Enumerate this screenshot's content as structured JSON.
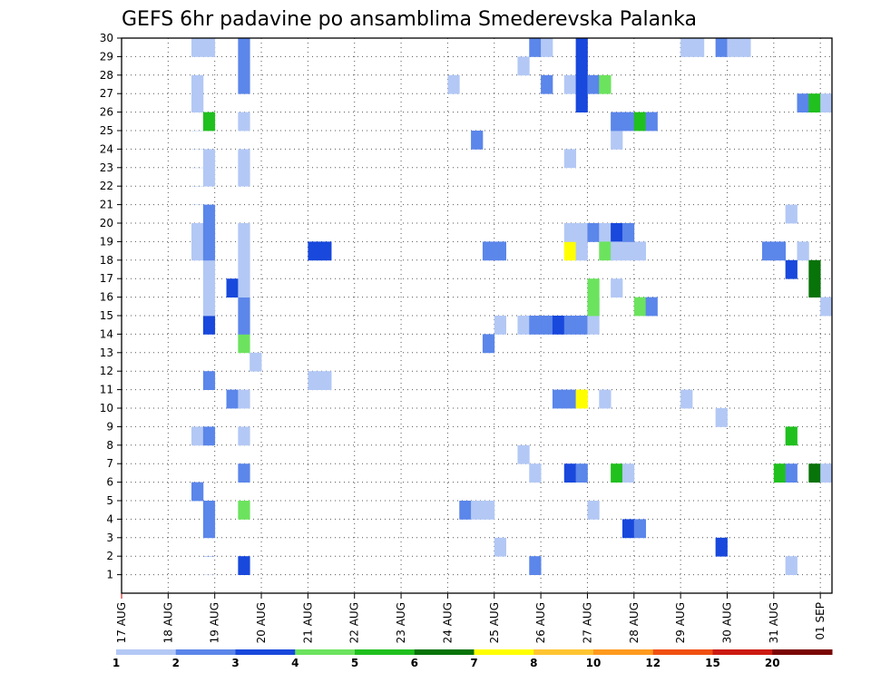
{
  "chart_data": {
    "type": "heatmap",
    "title": "GEFS 6hr padavine po ansamblima Smederevska Palanka",
    "xlabel": "",
    "ylabel": "",
    "x_tick_labels": [
      "17 AUG",
      "18 AUG",
      "19 AUG",
      "20 AUG",
      "21 AUG",
      "22 AUG",
      "23 AUG",
      "24 AUG",
      "25 AUG",
      "26 AUG",
      "27 AUG",
      "28 AUG",
      "29 AUG",
      "30 AUG",
      "31 AUG",
      "01 SEP"
    ],
    "x_range_days": [
      0,
      15.25
    ],
    "y_tick_labels": [
      1,
      2,
      3,
      4,
      5,
      6,
      7,
      8,
      9,
      10,
      11,
      12,
      13,
      14,
      15,
      16,
      17,
      18,
      19,
      20,
      21,
      22,
      23,
      24,
      25,
      26,
      27,
      28,
      29,
      30
    ],
    "y_range": [
      0,
      30
    ],
    "grid": true,
    "colorbar": {
      "labels": [
        "1",
        "2",
        "3",
        "4",
        "5",
        "6",
        "7",
        "8",
        "10",
        "12",
        "15",
        "20"
      ],
      "colors": [
        "#b3c8f5",
        "#5b86ea",
        "#1848dc",
        "#6ce35e",
        "#20c01e",
        "#087308",
        "#ffff00",
        "#ffc430",
        "#ff9a1e",
        "#f05010",
        "#cc1a10",
        "#7a0404"
      ]
    },
    "cells": [
      {
        "t": [
          1.5,
          0
        ],
        "m": 0,
        "c": 0
      },
      {
        "t": [
          1.5,
          1
        ],
        "m": 0,
        "c": 0
      },
      {
        "t": [
          1.5,
          2
        ],
        "m": 0,
        "c": 0
      },
      {
        "t": [
          1.5,
          5
        ],
        "m": 6,
        "c": 1
      },
      {
        "t": [
          1.5,
          8
        ],
        "m": 9,
        "c": 0
      },
      {
        "t": [
          1.5,
          18
        ],
        "m": 19,
        "c": 0
      },
      {
        "t": [
          1.5,
          19
        ],
        "m": 20,
        "c": 0
      },
      {
        "t": [
          1.5,
          21
        ],
        "m": 21,
        "c": 0
      },
      {
        "t": [
          1.5,
          22
        ],
        "m": 22,
        "c": 0
      },
      {
        "t": [
          1.5,
          23
        ],
        "m": 23,
        "c": 0
      },
      {
        "t": [
          1.5,
          24
        ],
        "m": 24,
        "c": 0
      },
      {
        "t": [
          1.5,
          25
        ],
        "m": 25,
        "c": 0
      },
      {
        "t": [
          1.5,
          26
        ],
        "m": 27,
        "c": 0
      },
      {
        "t": [
          1.5,
          27
        ],
        "m": 28,
        "c": 0
      },
      {
        "t": [
          1.5,
          29
        ],
        "m": 30,
        "c": 0
      },
      {
        "t": [
          1.75,
          0
        ],
        "m": 0,
        "c": 0
      },
      {
        "t": [
          1.75,
          1
        ],
        "m": 1,
        "c": 0
      },
      {
        "t": [
          1.75,
          2
        ],
        "m": 2,
        "c": 1
      },
      {
        "t": [
          1.75,
          3
        ],
        "m": 5,
        "c": 1
      },
      {
        "t": [
          1.75,
          8
        ],
        "m": 9,
        "c": 1
      },
      {
        "t": [
          1.75,
          11
        ],
        "m": 12,
        "c": 1
      },
      {
        "t": [
          1.75,
          14
        ],
        "m": 15,
        "c": 2
      },
      {
        "t": [
          1.75,
          15
        ],
        "m": 16,
        "c": 0
      },
      {
        "t": [
          1.75,
          16
        ],
        "m": 17,
        "c": 0
      },
      {
        "t": [
          1.75,
          17
        ],
        "m": 18,
        "c": 0
      },
      {
        "t": [
          1.75,
          18
        ],
        "m": 19,
        "c": 1
      },
      {
        "t": [
          1.75,
          19
        ],
        "m": 20,
        "c": 1
      },
      {
        "t": [
          1.75,
          20
        ],
        "m": 21,
        "c": 1
      },
      {
        "t": [
          1.75,
          22
        ],
        "m": 23,
        "c": 0
      },
      {
        "t": [
          1.75,
          23
        ],
        "m": 24,
        "c": 0
      },
      {
        "t": [
          1.75,
          25
        ],
        "m": 26,
        "c": 4
      },
      {
        "t": [
          1.75,
          29
        ],
        "m": 30,
        "c": 0
      },
      {
        "t": [
          2.25,
          0
        ],
        "m": 0,
        "c": 1
      },
      {
        "t": [
          2.25,
          10
        ],
        "m": 11,
        "c": 1
      },
      {
        "t": [
          2.25,
          16
        ],
        "m": 17,
        "c": 2
      },
      {
        "t": [
          2.5,
          0
        ],
        "m": 0,
        "c": 1
      },
      {
        "t": [
          2.5,
          1
        ],
        "m": 2,
        "c": 2
      },
      {
        "t": [
          2.5,
          4
        ],
        "m": 5,
        "c": 3
      },
      {
        "t": [
          2.5,
          6
        ],
        "m": 7,
        "c": 1
      },
      {
        "t": [
          2.5,
          8
        ],
        "m": 9,
        "c": 0
      },
      {
        "t": [
          2.5,
          10
        ],
        "m": 11,
        "c": 0
      },
      {
        "t": [
          2.5,
          13
        ],
        "m": 14,
        "c": 3
      },
      {
        "t": [
          2.5,
          14
        ],
        "m": 16,
        "c": 1
      },
      {
        "t": [
          2.5,
          16
        ],
        "m": 17,
        "c": 0
      },
      {
        "t": [
          2.5,
          17
        ],
        "m": 18,
        "c": 0
      },
      {
        "t": [
          2.5,
          18
        ],
        "m": 20,
        "c": 0
      },
      {
        "t": [
          2.5,
          22
        ],
        "m": 24,
        "c": 0
      },
      {
        "t": [
          2.5,
          25
        ],
        "m": 26,
        "c": 0
      },
      {
        "t": [
          2.5,
          27
        ],
        "m": 30,
        "c": 1
      },
      {
        "t": [
          2.75,
          12
        ],
        "m": 13,
        "c": 0
      },
      {
        "t": [
          4.0,
          11
        ],
        "m": 12,
        "c": 0
      },
      {
        "t": [
          4.25,
          11
        ],
        "m": 12,
        "c": 0
      },
      {
        "t": [
          4.0,
          18
        ],
        "m": 19,
        "c": 2
      },
      {
        "t": [
          4.25,
          18
        ],
        "m": 19,
        "c": 2
      },
      {
        "t": [
          7.0,
          27
        ],
        "m": 28,
        "c": 0
      },
      {
        "t": [
          7.25,
          4
        ],
        "m": 5,
        "c": 1
      },
      {
        "t": [
          7.5,
          4
        ],
        "m": 5,
        "c": 0
      },
      {
        "t": [
          7.75,
          4
        ],
        "m": 5,
        "c": 0
      },
      {
        "t": [
          7.75,
          13
        ],
        "m": 14,
        "c": 1
      },
      {
        "t": [
          7.75,
          18
        ],
        "m": 19,
        "c": 1
      },
      {
        "t": [
          8.0,
          18
        ],
        "m": 19,
        "c": 1
      },
      {
        "t": [
          7.5,
          24
        ],
        "m": 25,
        "c": 1
      },
      {
        "t": [
          8.0,
          2
        ],
        "m": 3,
        "c": 0
      },
      {
        "t": [
          8.0,
          14
        ],
        "m": 15,
        "c": 0
      },
      {
        "t": [
          8.5,
          0
        ],
        "m": 0,
        "c": 1
      },
      {
        "t": [
          8.5,
          7
        ],
        "m": 8,
        "c": 0
      },
      {
        "t": [
          8.5,
          14
        ],
        "m": 15,
        "c": 0
      },
      {
        "t": [
          8.5,
          28
        ],
        "m": 29,
        "c": 0
      },
      {
        "t": [
          8.75,
          0
        ],
        "m": 0,
        "c": 4
      },
      {
        "t": [
          8.75,
          1
        ],
        "m": 2,
        "c": 1
      },
      {
        "t": [
          8.75,
          6
        ],
        "m": 7,
        "c": 0
      },
      {
        "t": [
          8.75,
          14
        ],
        "m": 15,
        "c": 1
      },
      {
        "t": [
          9.0,
          14
        ],
        "m": 15,
        "c": 1
      },
      {
        "t": [
          8.75,
          29
        ],
        "m": 30,
        "c": 1
      },
      {
        "t": [
          9.0,
          0
        ],
        "m": 0,
        "c": 0
      },
      {
        "t": [
          9.0,
          29
        ],
        "m": 30,
        "c": 0
      },
      {
        "t": [
          9.25,
          14
        ],
        "m": 15,
        "c": 2
      },
      {
        "t": [
          9.5,
          14
        ],
        "m": 15,
        "c": 1
      },
      {
        "t": [
          9.75,
          14
        ],
        "m": 15,
        "c": 1
      },
      {
        "t": [
          10.0,
          14
        ],
        "m": 16,
        "c": 0
      },
      {
        "t": [
          9.25,
          10
        ],
        "m": 11,
        "c": 1
      },
      {
        "t": [
          9.5,
          10
        ],
        "m": 11,
        "c": 1
      },
      {
        "t": [
          9.75,
          10
        ],
        "m": 11,
        "c": 6
      },
      {
        "t": [
          9.0,
          27
        ],
        "m": 28,
        "c": 1
      },
      {
        "t": [
          9.5,
          27
        ],
        "m": 28,
        "c": 0
      },
      {
        "t": [
          9.75,
          26
        ],
        "m": 28,
        "c": 2
      },
      {
        "t": [
          9.75,
          28
        ],
        "m": 30,
        "c": 2
      },
      {
        "t": [
          10.0,
          27
        ],
        "m": 28,
        "c": 1
      },
      {
        "t": [
          10.25,
          27
        ],
        "m": 28,
        "c": 3
      },
      {
        "t": [
          9.5,
          23
        ],
        "m": 24,
        "c": 0
      },
      {
        "t": [
          9.5,
          18
        ],
        "m": 19,
        "c": 6
      },
      {
        "t": [
          9.75,
          18
        ],
        "m": 19,
        "c": 0
      },
      {
        "t": [
          9.5,
          19
        ],
        "m": 20,
        "c": 0
      },
      {
        "t": [
          9.75,
          19
        ],
        "m": 20,
        "c": 0
      },
      {
        "t": [
          10.0,
          19
        ],
        "m": 20,
        "c": 1
      },
      {
        "t": [
          10.25,
          19
        ],
        "m": 20,
        "c": 0
      },
      {
        "t": [
          10.25,
          18
        ],
        "m": 19,
        "c": 3
      },
      {
        "t": [
          10.5,
          19
        ],
        "m": 20,
        "c": 2
      },
      {
        "t": [
          10.5,
          18
        ],
        "m": 19,
        "c": 0
      },
      {
        "t": [
          10.75,
          18
        ],
        "m": 19,
        "c": 0
      },
      {
        "t": [
          11.0,
          18
        ],
        "m": 19,
        "c": 0
      },
      {
        "t": [
          10.75,
          19
        ],
        "m": 20,
        "c": 1
      },
      {
        "t": [
          10.5,
          16
        ],
        "m": 17,
        "c": 0
      },
      {
        "t": [
          10.0,
          15
        ],
        "m": 17,
        "c": 3
      },
      {
        "t": [
          9.5,
          6
        ],
        "m": 7,
        "c": 2
      },
      {
        "t": [
          9.75,
          6
        ],
        "m": 7,
        "c": 1
      },
      {
        "t": [
          10.0,
          4
        ],
        "m": 5,
        "c": 0
      },
      {
        "t": [
          10.25,
          10
        ],
        "m": 11,
        "c": 0
      },
      {
        "t": [
          10.5,
          6
        ],
        "m": 7,
        "c": 4
      },
      {
        "t": [
          10.75,
          6
        ],
        "m": 7,
        "c": 0
      },
      {
        "t": [
          10.75,
          3
        ],
        "m": 4,
        "c": 2
      },
      {
        "t": [
          11.0,
          3
        ],
        "m": 4,
        "c": 1
      },
      {
        "t": [
          11.0,
          15
        ],
        "m": 16,
        "c": 3
      },
      {
        "t": [
          11.25,
          15
        ],
        "m": 16,
        "c": 1
      },
      {
        "t": [
          10.5,
          24
        ],
        "m": 25,
        "c": 0
      },
      {
        "t": [
          10.5,
          25
        ],
        "m": 26,
        "c": 1
      },
      {
        "t": [
          10.75,
          25
        ],
        "m": 26,
        "c": 1
      },
      {
        "t": [
          11.0,
          25
        ],
        "m": 26,
        "c": 4
      },
      {
        "t": [
          11.25,
          25
        ],
        "m": 26,
        "c": 1
      },
      {
        "t": [
          12.0,
          10
        ],
        "m": 11,
        "c": 0
      },
      {
        "t": [
          12.0,
          29
        ],
        "m": 30,
        "c": 0
      },
      {
        "t": [
          12.25,
          29
        ],
        "m": 30,
        "c": 0
      },
      {
        "t": [
          12.75,
          29
        ],
        "m": 30,
        "c": 1
      },
      {
        "t": [
          13.0,
          29
        ],
        "m": 30,
        "c": 0
      },
      {
        "t": [
          13.25,
          29
        ],
        "m": 30,
        "c": 0
      },
      {
        "t": [
          12.75,
          9
        ],
        "m": 10,
        "c": 0
      },
      {
        "t": [
          12.75,
          2
        ],
        "m": 3,
        "c": 2
      },
      {
        "t": [
          13.75,
          18
        ],
        "m": 19,
        "c": 1
      },
      {
        "t": [
          14.0,
          18
        ],
        "m": 19,
        "c": 1
      },
      {
        "t": [
          14.5,
          18
        ],
        "m": 19,
        "c": 0
      },
      {
        "t": [
          14.25,
          20
        ],
        "m": 21,
        "c": 0
      },
      {
        "t": [
          14.25,
          17
        ],
        "m": 18,
        "c": 2
      },
      {
        "t": [
          14.25,
          8
        ],
        "m": 9,
        "c": 4
      },
      {
        "t": [
          14.0,
          6
        ],
        "m": 7,
        "c": 4
      },
      {
        "t": [
          14.25,
          6
        ],
        "m": 7,
        "c": 1
      },
      {
        "t": [
          14.25,
          1
        ],
        "m": 2,
        "c": 0
      },
      {
        "t": [
          14.5,
          26
        ],
        "m": 27,
        "c": 1
      },
      {
        "t": [
          14.75,
          26
        ],
        "m": 27,
        "c": 4
      },
      {
        "t": [
          15.0,
          26
        ],
        "m": 27,
        "c": 0
      },
      {
        "t": [
          14.75,
          16
        ],
        "m": 18,
        "c": 5
      },
      {
        "t": [
          15.0,
          15
        ],
        "m": 16,
        "c": 0
      },
      {
        "t": [
          14.75,
          6
        ],
        "m": 7,
        "c": 5
      },
      {
        "t": [
          15.0,
          6
        ],
        "m": 7,
        "c": 0
      }
    ]
  }
}
